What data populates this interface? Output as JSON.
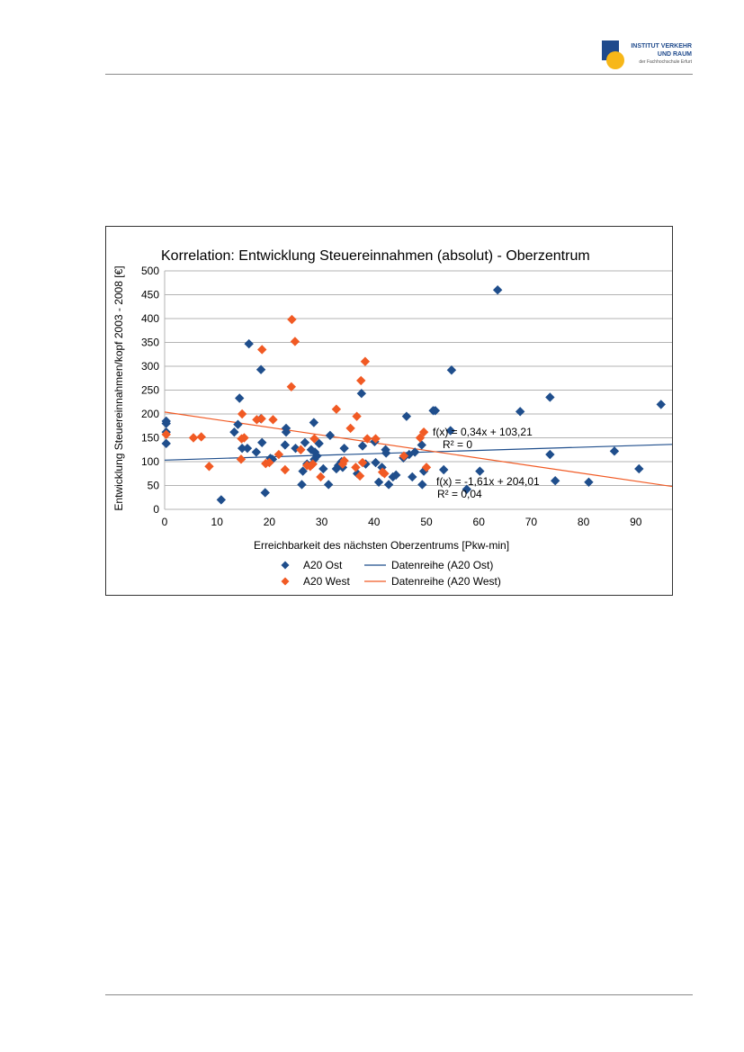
{
  "header": {
    "logo_line1": "INSTITUT VERKEHR",
    "logo_line2": "UND RAUM",
    "logo_line3": "der Fachhochschule Erfurt",
    "logo_colors": {
      "square": "#1f4a8c",
      "circle": "#f7b718"
    }
  },
  "chart_data": {
    "type": "scatter",
    "title": "Korrelation: Entwicklung Steuereinnahmen (absolut) - Oberzentrum",
    "xlabel": "Erreichbarkeit des nächsten Oberzentrums [Pkw-min]",
    "ylabel": "Entwicklung Steuereinnahmen/kopf 2003 - 2008 [€]",
    "xlim": [
      0,
      100
    ],
    "ylim": [
      0,
      500
    ],
    "xticks": [
      "0",
      "10",
      "20",
      "30",
      "40",
      "50",
      "60",
      "70",
      "80",
      "90",
      "100"
    ],
    "yticks": [
      "0",
      "50",
      "100",
      "150",
      "200",
      "250",
      "300",
      "350",
      "400",
      "450",
      "500"
    ],
    "grid": true,
    "legend_position": "bottom",
    "series": [
      {
        "name": "A20 Ost",
        "color": "#1f4e8c",
        "marker": "diamond",
        "points": [
          [
            0.3,
            185
          ],
          [
            0.3,
            180
          ],
          [
            0.3,
            162
          ],
          [
            0.3,
            138
          ],
          [
            10.8,
            20
          ],
          [
            13.3,
            162
          ],
          [
            14,
            178
          ],
          [
            14.3,
            233
          ],
          [
            14.8,
            128
          ],
          [
            15.8,
            128
          ],
          [
            16.1,
            347
          ],
          [
            17.5,
            120
          ],
          [
            18.4,
            293
          ],
          [
            18.4,
            190
          ],
          [
            18.6,
            140
          ],
          [
            19.2,
            35
          ],
          [
            20.2,
            107
          ],
          [
            20.6,
            105
          ],
          [
            23,
            135
          ],
          [
            23.2,
            162
          ],
          [
            23.2,
            170
          ],
          [
            25,
            128
          ],
          [
            26.2,
            52
          ],
          [
            26.4,
            80
          ],
          [
            26.8,
            140
          ],
          [
            27.2,
            95
          ],
          [
            28,
            125
          ],
          [
            28.2,
            95
          ],
          [
            28.5,
            182
          ],
          [
            28.6,
            105
          ],
          [
            28.7,
            120
          ],
          [
            29.1,
            112
          ],
          [
            29.5,
            138
          ],
          [
            30.3,
            85
          ],
          [
            31.3,
            52
          ],
          [
            31.6,
            155
          ],
          [
            32.8,
            85
          ],
          [
            33.2,
            92
          ],
          [
            33.8,
            100
          ],
          [
            34,
            88
          ],
          [
            34.3,
            128
          ],
          [
            36.8,
            75
          ],
          [
            37.6,
            243
          ],
          [
            37.8,
            133
          ],
          [
            38.4,
            95
          ],
          [
            40.1,
            142
          ],
          [
            40.3,
            98
          ],
          [
            40.9,
            57
          ],
          [
            41.5,
            88
          ],
          [
            42.2,
            125
          ],
          [
            42.3,
            118
          ],
          [
            42.8,
            52
          ],
          [
            43.6,
            68
          ],
          [
            44.2,
            72
          ],
          [
            45.6,
            108
          ],
          [
            46.2,
            195
          ],
          [
            46.7,
            115
          ],
          [
            47.3,
            68
          ],
          [
            47.8,
            120
          ],
          [
            49.1,
            135
          ],
          [
            49.2,
            52
          ],
          [
            49.5,
            80
          ],
          [
            51.3,
            207
          ],
          [
            51.7,
            207
          ],
          [
            53.3,
            83
          ],
          [
            54.6,
            165
          ],
          [
            54.8,
            292
          ],
          [
            57.7,
            42
          ],
          [
            60.2,
            80
          ],
          [
            63.6,
            460
          ],
          [
            67.9,
            205
          ],
          [
            73.6,
            235
          ],
          [
            73.6,
            115
          ],
          [
            74.6,
            60
          ],
          [
            81,
            57
          ],
          [
            85.9,
            122
          ],
          [
            90.6,
            85
          ],
          [
            94.8,
            220
          ]
        ]
      },
      {
        "name": "A20 West",
        "color": "#f15a24",
        "marker": "diamond",
        "points": [
          [
            0.3,
            157
          ],
          [
            5.5,
            150
          ],
          [
            7,
            152
          ],
          [
            8.5,
            90
          ],
          [
            14.6,
            105
          ],
          [
            14.7,
            148
          ],
          [
            14.8,
            200
          ],
          [
            15.2,
            150
          ],
          [
            17.6,
            188
          ],
          [
            18.5,
            190
          ],
          [
            18.6,
            335
          ],
          [
            19.3,
            96
          ],
          [
            20,
            98
          ],
          [
            20.7,
            188
          ],
          [
            21.8,
            115
          ],
          [
            23,
            83
          ],
          [
            24.2,
            257
          ],
          [
            24.3,
            398
          ],
          [
            24.9,
            352
          ],
          [
            26,
            125
          ],
          [
            27.2,
            92
          ],
          [
            27.8,
            90
          ],
          [
            28.3,
            95
          ],
          [
            28.6,
            148
          ],
          [
            29.8,
            68
          ],
          [
            32.8,
            210
          ],
          [
            34,
            95
          ],
          [
            34.3,
            102
          ],
          [
            35.5,
            170
          ],
          [
            36.5,
            88
          ],
          [
            36.7,
            195
          ],
          [
            37.3,
            70
          ],
          [
            37.5,
            270
          ],
          [
            37.8,
            98
          ],
          [
            38.3,
            310
          ],
          [
            38.7,
            148
          ],
          [
            40.3,
            148
          ],
          [
            41.6,
            78
          ],
          [
            42,
            75
          ],
          [
            45.7,
            112
          ],
          [
            48.8,
            150
          ],
          [
            49.5,
            162
          ],
          [
            50,
            88
          ]
        ]
      }
    ],
    "trendlines": [
      {
        "name": "Datenreihe (A20 Ost)",
        "color": "#1f4e8c",
        "slope": 0.34,
        "intercept": 103.21,
        "equation": "f(x) = 0,34x + 103,21",
        "r2": "R² = 0"
      },
      {
        "name": "Datenreihe (A20 West)",
        "color": "#f15a24",
        "slope": -1.61,
        "intercept": 204.01,
        "equation": "f(x) = -1,61x + 204,01",
        "r2": "R² = 0,04"
      }
    ]
  }
}
